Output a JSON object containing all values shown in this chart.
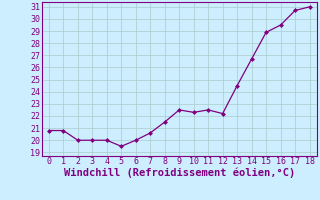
{
  "x": [
    0,
    1,
    2,
    3,
    4,
    5,
    6,
    7,
    8,
    9,
    10,
    11,
    12,
    13,
    14,
    15,
    16,
    17,
    18
  ],
  "y": [
    20.8,
    20.8,
    20.0,
    20.0,
    20.0,
    19.5,
    20.0,
    20.6,
    21.5,
    22.5,
    22.3,
    22.5,
    22.2,
    24.5,
    26.7,
    28.9,
    29.5,
    30.7,
    31.0
  ],
  "line_color": "#800080",
  "marker": "D",
  "marker_size": 2.0,
  "linewidth": 0.9,
  "background_color": "#cceeff",
  "grid_color": "#aacccc",
  "xlabel": "Windchill (Refroidissement éolien,°C)",
  "xlabel_color": "#800080",
  "xlabel_fontsize": 7.5,
  "ytick_min": 19,
  "ytick_max": 31,
  "xtick_min": 0,
  "xtick_max": 18,
  "tick_fontsize": 6.0,
  "tick_color": "#800080",
  "spine_color": "#800080"
}
